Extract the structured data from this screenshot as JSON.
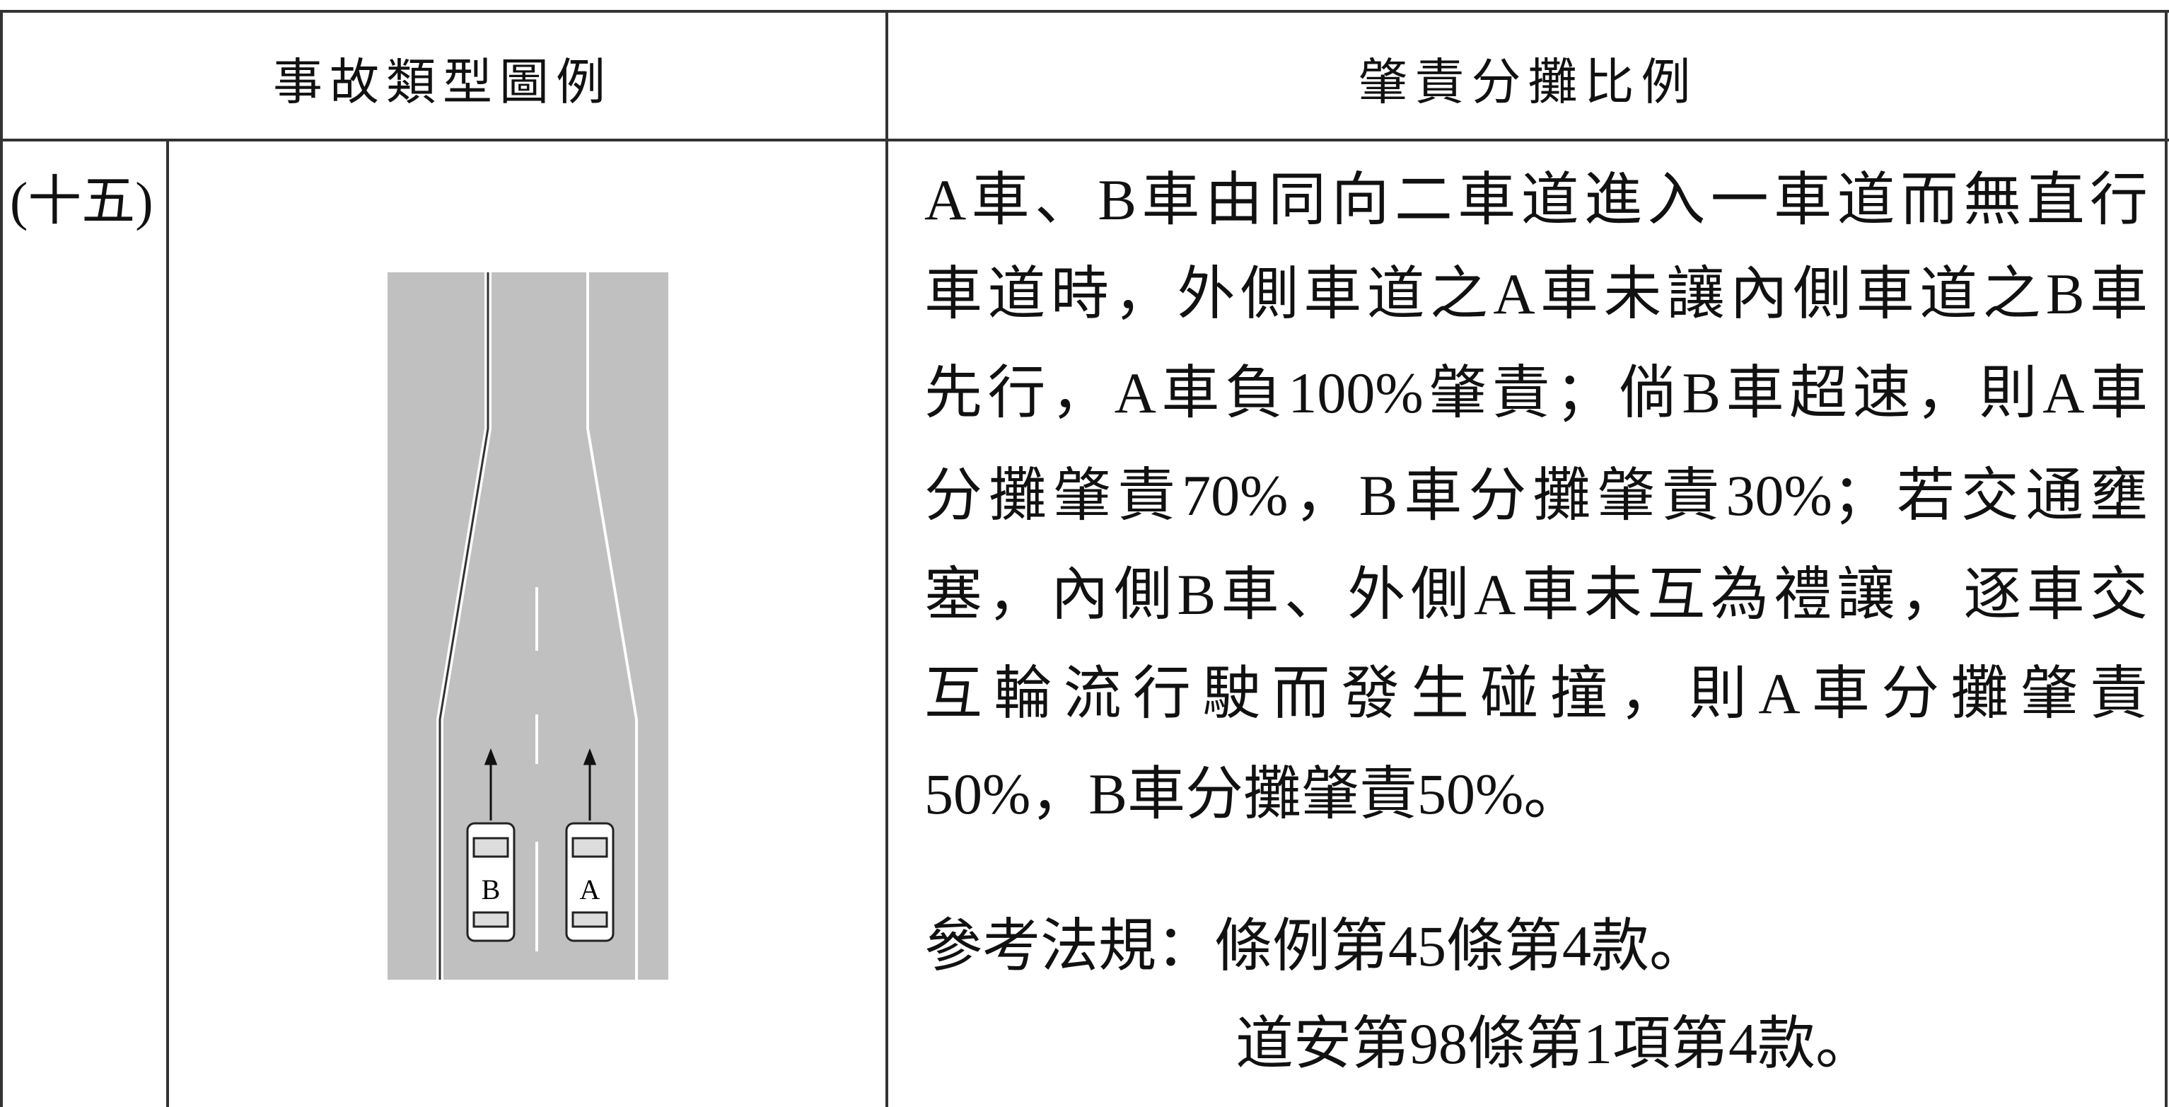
{
  "header": {
    "columns": [
      "事故類型圖例",
      "肇責分攤比例"
    ]
  },
  "row": {
    "label": "(十五)",
    "diagram": {
      "cars": [
        "B",
        "A"
      ]
    },
    "text_lines": [
      "A車、B車由同向二車道進入一車道而無直行",
      "車道時，外側車道之A車未讓內側車道之B車",
      "先行，A車負100%肇責；倘B車超速，則A車",
      "分攤肇責70%，B車分攤肇責30%；若交通壅",
      "塞，內側B車、外側A車未互為禮讓，逐車交",
      "互輪流行駛而發生碰撞，則A車分攤肇責",
      "50%，B車分攤肇責50%。"
    ],
    "reference_lines": [
      "參考法規：條例第45條第4款。",
      "道安第98條第1項第4款。"
    ]
  }
}
